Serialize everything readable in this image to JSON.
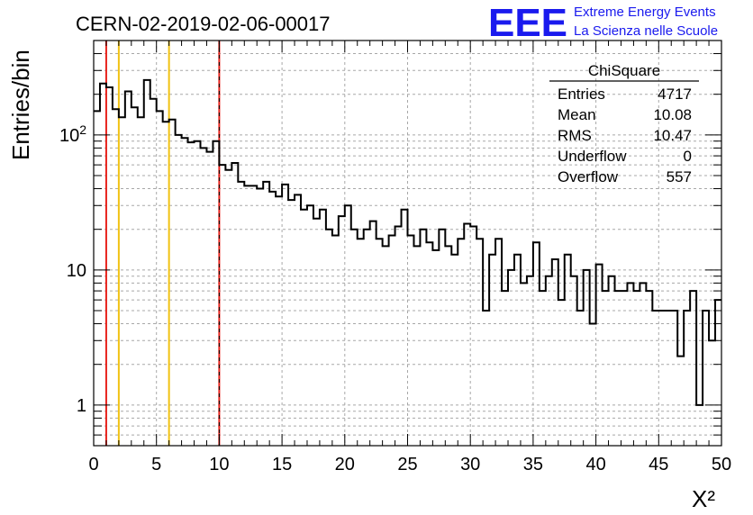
{
  "chart_data": {
    "type": "histogram",
    "title": "CERN-02-2019-02-06-00017",
    "xlabel": "X²",
    "ylabel": "Entries/bin",
    "xlim": [
      0,
      50
    ],
    "ylim": [
      0.5,
      500
    ],
    "yscale": "log",
    "grid": true,
    "bin_width": 0.5,
    "x_ticks": [
      "0",
      "5",
      "10",
      "15",
      "20",
      "25",
      "30",
      "35",
      "40",
      "45",
      "50"
    ],
    "y_ticks": [
      {
        "value": 1,
        "label": "1"
      },
      {
        "value": 10,
        "label": "10"
      },
      {
        "value": 100,
        "label": "10²"
      }
    ],
    "values": [
      150,
      240,
      225,
      155,
      135,
      210,
      160,
      135,
      255,
      185,
      150,
      125,
      130,
      100,
      95,
      88,
      90,
      80,
      75,
      90,
      60,
      55,
      62,
      45,
      42,
      42,
      40,
      45,
      38,
      35,
      43,
      33,
      36,
      28,
      30,
      24,
      28,
      20,
      18,
      25,
      30,
      20,
      17,
      20,
      23,
      17,
      15,
      18,
      21,
      28,
      18,
      15,
      20,
      16,
      14,
      20,
      15,
      13,
      17,
      22,
      21,
      17,
      5,
      13,
      17,
      7,
      10,
      13,
      8,
      9,
      16,
      7,
      9,
      12,
      6,
      13,
      9,
      5,
      10,
      4,
      11,
      7,
      9,
      7,
      7,
      8,
      7,
      8,
      7,
      5,
      5,
      5,
      5,
      2.3,
      5,
      7,
      1,
      5,
      3,
      6
    ],
    "vertical_lines": [
      {
        "x": 1,
        "color": "#e8231c"
      },
      {
        "x": 2,
        "color": "#f1c213"
      },
      {
        "x": 6,
        "color": "#f1c213"
      },
      {
        "x": 10,
        "color": "#e8231c",
        "dashed_overlay": true
      }
    ],
    "stats": {
      "title": "ChiSquare",
      "rows": [
        {
          "label": "Entries",
          "value": "4717"
        },
        {
          "label": "Mean",
          "value": "10.08"
        },
        {
          "label": "RMS",
          "value": "10.47"
        },
        {
          "label": "Underflow",
          "value": "0"
        },
        {
          "label": "Overflow",
          "value": "557"
        }
      ]
    }
  },
  "logo": {
    "mark": "EEE",
    "line1": "Extreme Energy Events",
    "line2": "La Scienza nelle Scuole"
  },
  "colors": {
    "histogram": "#000000",
    "grid": "#a8a8a8",
    "logo": "#1a1aee"
  }
}
